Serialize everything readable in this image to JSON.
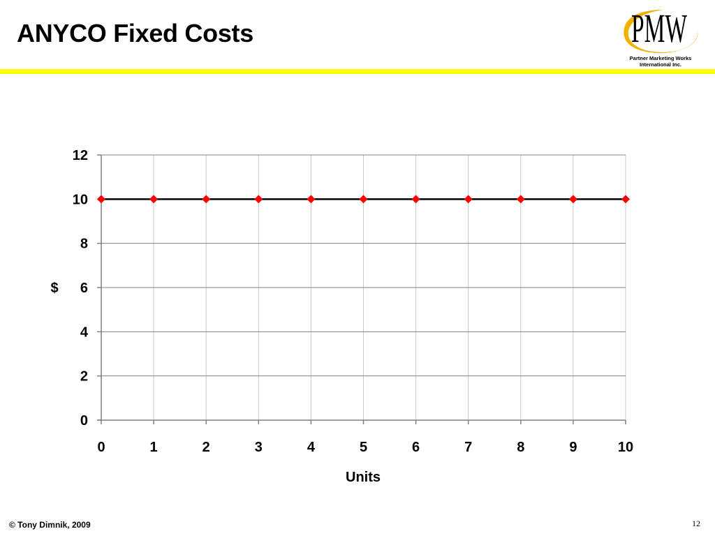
{
  "slide": {
    "title": "ANYCO Fixed Costs",
    "footer": "© Tony Dimnik, 2009",
    "page_number": "12",
    "logo": {
      "mark_text": "PMW",
      "line1": "Partner Marketing Works",
      "line2": "International Inc.",
      "icon": "pmw-logo-icon"
    }
  },
  "colors": {
    "accent_rule": "#ffff00",
    "series_line": "#000000",
    "marker": "#ff0000",
    "gridline": "#808080",
    "vertical_gridline": "#c8c8c8",
    "logo_swoosh": "#f2b000"
  },
  "chart_data": {
    "type": "line",
    "title": "",
    "xlabel": "Units",
    "ylabel": "$",
    "x": [
      0,
      1,
      2,
      3,
      4,
      5,
      6,
      7,
      8,
      9,
      10
    ],
    "series": [
      {
        "values": [
          10,
          10,
          10,
          10,
          10,
          10,
          10,
          10,
          10,
          10,
          10
        ],
        "marker": "diamond"
      }
    ],
    "xlim": [
      0,
      10
    ],
    "ylim": [
      0,
      12
    ],
    "x_ticks": [
      0,
      1,
      2,
      3,
      4,
      5,
      6,
      7,
      8,
      9,
      10
    ],
    "y_ticks": [
      0,
      2,
      4,
      6,
      8,
      10,
      12
    ],
    "grid": "on",
    "legend": "none"
  }
}
